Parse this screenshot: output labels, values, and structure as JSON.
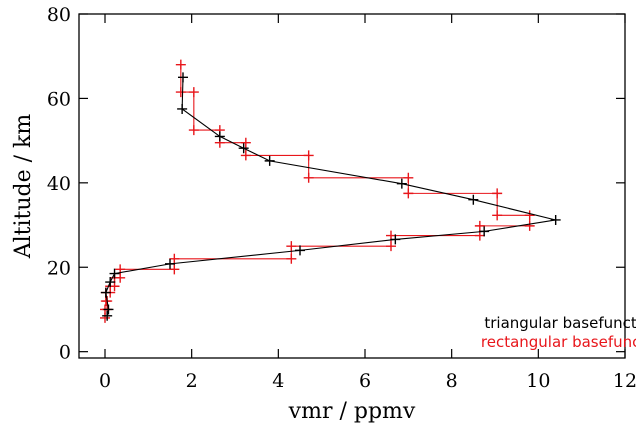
{
  "chart_data": {
    "type": "line",
    "title": "",
    "xlabel": "vmr / ppmv",
    "ylabel": "Altitude / km",
    "xlim": [
      -0.6,
      12
    ],
    "ylim": [
      -1.5,
      80
    ],
    "xticks": [
      0,
      2,
      4,
      6,
      8,
      10,
      12
    ],
    "yticks": [
      0,
      20,
      40,
      60,
      80
    ],
    "xtick_labels": [
      "0",
      "2",
      "4",
      "6",
      "8",
      "10",
      "12"
    ],
    "ytick_labels": [
      "0",
      "20",
      "40",
      "60",
      "80"
    ],
    "grid": false,
    "legend_position": "bottom-right",
    "series": [
      {
        "name": "triangular basefunction",
        "color": "#000000",
        "style": "line-with-plus-markers",
        "points": [
          {
            "x": 0.05,
            "y": 8.5
          },
          {
            "x": 0.08,
            "y": 10.0
          },
          {
            "x": 0.02,
            "y": 14.0
          },
          {
            "x": 0.12,
            "y": 16.5
          },
          {
            "x": 0.22,
            "y": 18.5
          },
          {
            "x": 1.5,
            "y": 20.8
          },
          {
            "x": 4.5,
            "y": 24.0
          },
          {
            "x": 6.7,
            "y": 26.6
          },
          {
            "x": 8.75,
            "y": 28.5
          },
          {
            "x": 10.4,
            "y": 31.2
          },
          {
            "x": 8.5,
            "y": 36.0
          },
          {
            "x": 6.85,
            "y": 39.8
          },
          {
            "x": 3.8,
            "y": 45.2
          },
          {
            "x": 3.2,
            "y": 48.2
          },
          {
            "x": 2.65,
            "y": 51.0
          },
          {
            "x": 1.78,
            "y": 57.5
          },
          {
            "x": 1.8,
            "y": 65.0
          }
        ]
      },
      {
        "name": "rectangular basefunction",
        "color": "#e8161b",
        "style": "step-profile-with-plus-markers",
        "levels": [
          {
            "x": 0.0,
            "y_bottom": 8.0,
            "y_top": 10.0
          },
          {
            "x": 0.05,
            "y_bottom": 10.0,
            "y_top": 12.0
          },
          {
            "x": 0.02,
            "y_bottom": 12.0,
            "y_top": 14.0
          },
          {
            "x": 0.12,
            "y_bottom": 14.0,
            "y_top": 15.5
          },
          {
            "x": 0.22,
            "y_bottom": 15.5,
            "y_top": 17.5
          },
          {
            "x": 0.35,
            "y_bottom": 17.5,
            "y_top": 19.5
          },
          {
            "x": 1.6,
            "y_bottom": 19.5,
            "y_top": 22.0
          },
          {
            "x": 4.3,
            "y_bottom": 22.0,
            "y_top": 25.0
          },
          {
            "x": 6.6,
            "y_bottom": 25.0,
            "y_top": 27.5
          },
          {
            "x": 8.65,
            "y_bottom": 27.5,
            "y_top": 29.8
          },
          {
            "x": 9.8,
            "y_bottom": 29.8,
            "y_top": 32.3
          },
          {
            "x": 9.05,
            "y_bottom": 32.3,
            "y_top": 37.5
          },
          {
            "x": 7.0,
            "y_bottom": 37.5,
            "y_top": 41.2
          },
          {
            "x": 4.7,
            "y_bottom": 41.2,
            "y_top": 46.5
          },
          {
            "x": 3.25,
            "y_bottom": 46.5,
            "y_top": 49.5
          },
          {
            "x": 2.65,
            "y_bottom": 49.5,
            "y_top": 52.5
          },
          {
            "x": 2.05,
            "y_bottom": 52.5,
            "y_top": 61.5
          },
          {
            "x": 1.75,
            "y_bottom": 61.5,
            "y_top": 68.0
          }
        ]
      }
    ]
  }
}
